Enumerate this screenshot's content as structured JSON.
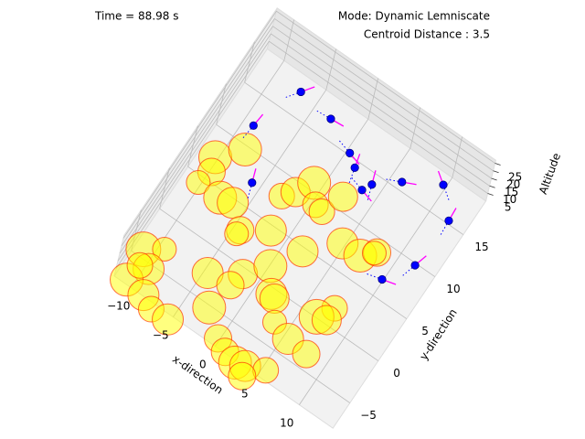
{
  "chart_data": {
    "type": "scatter3d",
    "annotations": {
      "time": "Time = 88.98 s",
      "mode": "Mode: Dynamic Lemniscate",
      "centroid": "Centroid Distance : 3.5"
    },
    "xlabel": "x-direction",
    "ylabel": "y-direction",
    "zlabel": "Altitude",
    "xlim": [
      -12,
      14
    ],
    "ylim": [
      -8,
      19
    ],
    "zlim": [
      0,
      27
    ],
    "xticks": [
      {
        "value": -10,
        "label": "−10"
      },
      {
        "value": -5,
        "label": "−5"
      },
      0,
      5,
      10
    ],
    "yticks": [
      {
        "value": -5,
        "label": "−5"
      },
      0,
      5,
      10,
      15
    ],
    "zticks": [
      5,
      10,
      15,
      20,
      25
    ],
    "grid": true,
    "series": [
      {
        "name": "obstacles",
        "color": "#ffff00",
        "edgecolor": "#ff3300",
        "x": [
          -10.3,
          -8.3,
          -9.8,
          -10.3,
          -7.7,
          -6.4,
          -2.8,
          -1.9,
          -0.9,
          0.4,
          1.3,
          2.2,
          -4.3,
          -4.4,
          -1.8,
          1.9,
          4.7,
          6.8,
          8.0,
          7.8,
          -11.1,
          -9.4,
          -9.6,
          -10.8,
          -10.5,
          -4.6,
          -1.7,
          0.1,
          -2.1,
          -8.6,
          -7.2,
          -5.3,
          -2.6,
          1.7,
          2.2,
          3.5,
          7.6,
          6.6,
          7.6,
          5.5,
          7.8,
          -0.2,
          1.1,
          2.5,
          3.5,
          5.4,
          3.8
        ],
        "values": [
          7.3,
          9.6,
          5.9,
          4.3,
          4.3,
          4.6,
          7.9,
          9.0,
          10.8,
          9.1,
          8.9,
          11.3,
          2.8,
          2.3,
          4.5,
          4.6,
          7.5,
          7.5,
          8.7,
          8.5,
          -4.2,
          -3.0,
          -5.5,
          -7.6,
          -5.7,
          -2.5,
          -0.6,
          1.6,
          -2.2,
          -7.9,
          -8.6,
          -8.5,
          -5.2,
          -0.6,
          -0.8,
          -2.7,
          1.8,
          0.1,
          0.4,
          -3.3,
          -3.5,
          -7.2,
          -7.9,
          -8.2,
          -7.9,
          -7.1,
          -8.9
        ],
        "sizes": [
          18,
          18,
          15,
          13,
          18,
          17,
          14,
          16,
          18,
          14,
          14,
          16,
          15,
          13,
          17,
          17,
          17,
          18,
          15,
          13,
          19,
          13,
          17,
          18,
          14,
          17,
          16,
          18,
          15,
          17,
          14,
          17,
          18,
          17,
          16,
          13,
          14,
          19,
          16,
          17,
          15,
          15,
          15,
          18,
          17,
          14,
          15
        ]
      },
      {
        "name": "drones",
        "color": "#0000ff",
        "heading_color": "#ff00ff",
        "x": [
          -6.3,
          -2.4,
          -8.3,
          1.0,
          2.2,
          -5.3,
          4.5,
          4.0,
          6.8,
          10.3,
          12.7,
          12.4,
          10.5
        ],
        "values": [
          15.7,
          15.2,
          10.3,
          13.5,
          12.6,
          5.6,
          12.2,
          11.2,
          14.1,
          16.2,
          13.6,
          8.1,
          5.1
        ],
        "z": [
          12,
          12,
          12,
          12,
          12,
          12,
          12,
          12,
          12,
          12,
          12,
          12,
          12
        ],
        "heading": [
          -20,
          30,
          -50,
          50,
          -70,
          -75,
          -75,
          50,
          10,
          -110,
          -60,
          -40,
          20
        ]
      }
    ]
  }
}
